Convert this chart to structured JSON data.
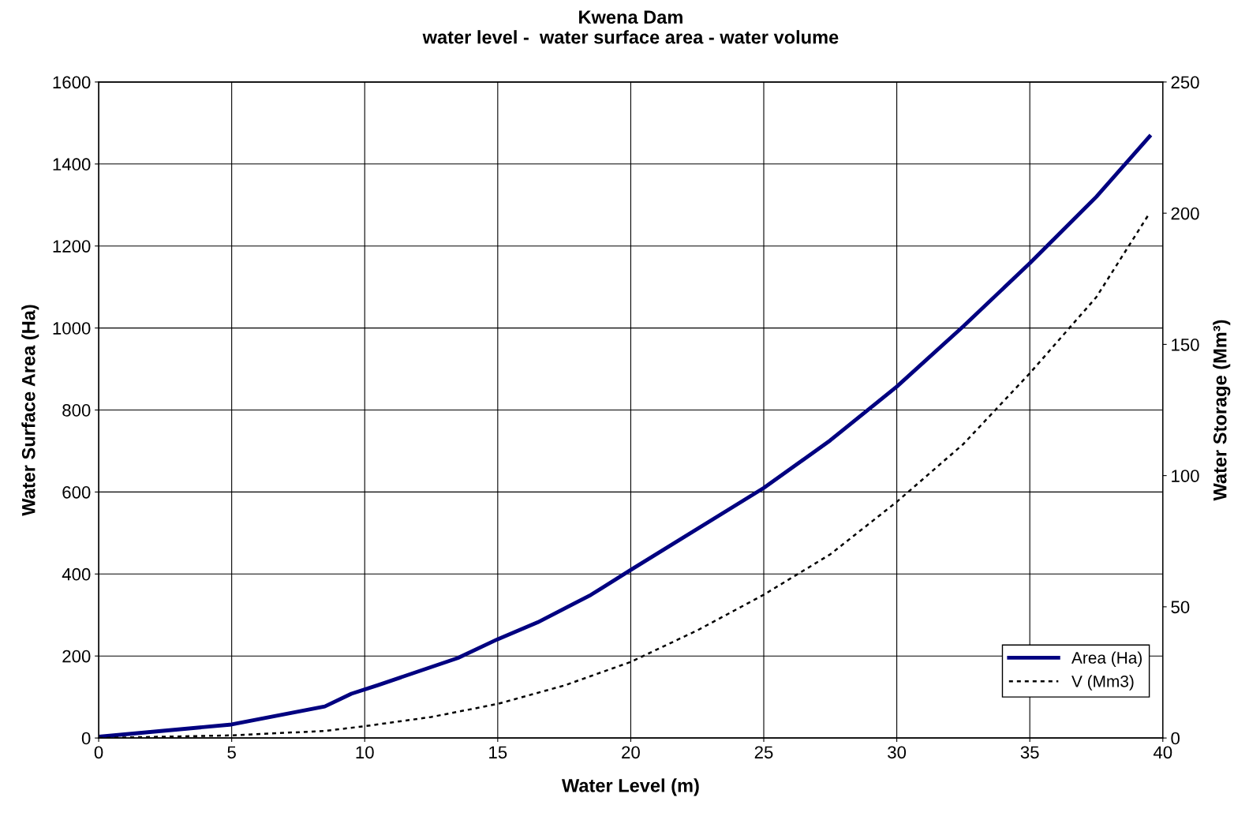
{
  "chart_data": {
    "type": "line",
    "title": "Kwena Dam\nwater level -  water surface area - water volume",
    "xlabel": "Water Level (m)",
    "ylabel": "Water Surface Area (Ha)",
    "y2label": "Water Storage (Mm³)",
    "xlim": [
      0,
      40
    ],
    "xticks": [
      0,
      5,
      10,
      15,
      20,
      25,
      30,
      35,
      40
    ],
    "ylim": [
      0,
      1600
    ],
    "yticks": [
      0,
      200,
      400,
      600,
      800,
      1000,
      1200,
      1400,
      1600
    ],
    "y2lim": [
      0,
      250
    ],
    "y2ticks": [
      0,
      50,
      100,
      150,
      200,
      250
    ],
    "grid": true,
    "legend": "bottom right",
    "marker": "none",
    "series": [
      {
        "name": "Area (Ha)",
        "color": "#000080",
        "line_style": "solid",
        "x": [
          0,
          2.5,
          5,
          8.5,
          9.5,
          10.5,
          13.5,
          15,
          16.5,
          18.5,
          20,
          25,
          27.5,
          30,
          32.5,
          35,
          37.5,
          39.5
        ],
        "values": [
          3,
          18,
          33,
          77,
          108,
          129,
          195,
          241,
          282,
          349,
          410,
          610,
          726,
          857,
          1004,
          1158,
          1320,
          1467
        ]
      },
      {
        "name": "V (Mm3)",
        "color": "#000000",
        "line_style": "dotted",
        "axis": "y2",
        "x": [
          0,
          5,
          8.5,
          10,
          12.5,
          15,
          17.5,
          20,
          22.5,
          25,
          27.5,
          30,
          32.5,
          35,
          37.5,
          39.5
        ],
        "values": [
          0,
          1,
          2.7,
          4.5,
          8,
          13,
          20,
          29,
          41,
          54.6,
          70,
          90,
          112,
          139,
          168,
          200
        ]
      }
    ]
  }
}
